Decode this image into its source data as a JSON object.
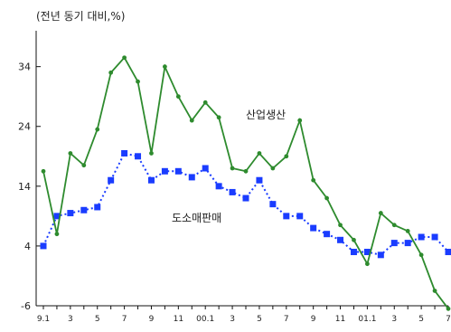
{
  "chart_data": {
    "type": "line",
    "unit_label": "(전년 동기 대비,%)",
    "ylim": [
      -6,
      40
    ],
    "yticks": [
      34,
      24,
      14,
      4,
      -6
    ],
    "grid": false,
    "x_tick_labels": [
      "9.1",
      "3",
      "5",
      "7",
      "9",
      "11",
      "00.1",
      "3",
      "5",
      "7",
      "9",
      "11",
      "01.1",
      "3",
      "5",
      "7"
    ],
    "series": [
      {
        "name": "산업생산",
        "color": "#2e8b2e",
        "marker": "circle",
        "line": "solid",
        "values": [
          16.5,
          6,
          19.5,
          17.5,
          23.5,
          33,
          35.5,
          31.5,
          19.5,
          34,
          29,
          25,
          28,
          25.5,
          17,
          16.5,
          19.5,
          17,
          19,
          25,
          15,
          12,
          7.5,
          5,
          1,
          9.5,
          7.5,
          6.5,
          2.5,
          -3.5,
          -6.5
        ]
      },
      {
        "name": "도소매판매",
        "color": "#1a3cff",
        "marker": "square",
        "line": "dotted",
        "values": [
          4,
          9,
          9.5,
          10,
          10.5,
          15,
          19.5,
          19,
          15,
          16.5,
          16.5,
          15.5,
          17,
          14,
          13,
          12,
          15,
          11,
          9,
          9,
          7,
          6,
          5,
          3,
          3,
          2.5,
          4.5,
          4.5,
          5.5,
          5.5,
          3
        ]
      }
    ],
    "annotations": [
      {
        "text": "산업생산",
        "series": 0
      },
      {
        "text": "도소매판매",
        "series": 1
      }
    ]
  }
}
